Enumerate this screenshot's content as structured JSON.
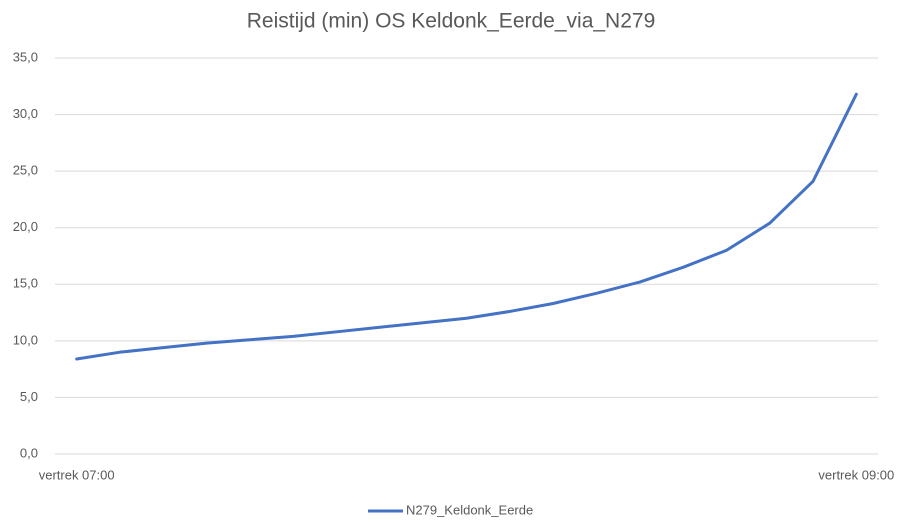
{
  "chart_data": {
    "type": "line",
    "title": "Reistijd (min) OS Keldonk_Eerde_via_N279",
    "categories": [
      "vertrek 07:00",
      null,
      null,
      null,
      null,
      null,
      null,
      null,
      null,
      null,
      null,
      null,
      null,
      null,
      null,
      null,
      null,
      null,
      "vertrek 09:00"
    ],
    "series": [
      {
        "name": "N279_Keldonk_Eerde",
        "color": "#4472c4",
        "values": [
          8.4,
          9.0,
          9.4,
          9.8,
          10.1,
          10.4,
          10.8,
          11.2,
          11.6,
          12.0,
          12.6,
          13.3,
          14.2,
          15.2,
          16.5,
          18.0,
          20.4,
          24.1,
          31.8
        ]
      }
    ],
    "ylim": [
      0,
      35
    ],
    "yticks": [
      {
        "value": 0,
        "label": "0,0"
      },
      {
        "value": 5,
        "label": "5,0"
      },
      {
        "value": 10,
        "label": "10,0"
      },
      {
        "value": 15,
        "label": "15,0"
      },
      {
        "value": 20,
        "label": "20,0"
      },
      {
        "value": 25,
        "label": "25,0"
      },
      {
        "value": 30,
        "label": "30,0"
      },
      {
        "value": 35,
        "label": "35,0"
      }
    ],
    "grid": true,
    "legend": "bottom"
  }
}
